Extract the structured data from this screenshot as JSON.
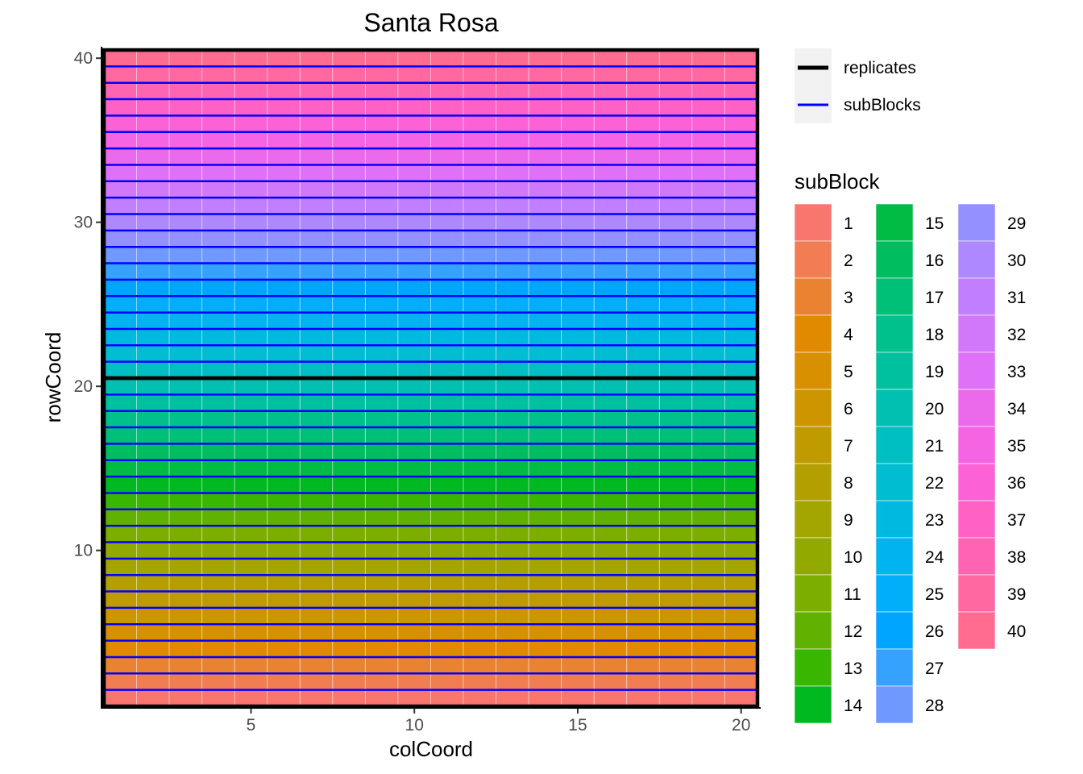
{
  "chart_data": {
    "type": "heatmap",
    "title": "Santa Rosa",
    "xlabel": "colCoord",
    "ylabel": "rowCoord",
    "xlim": [
      0.5,
      20.5
    ],
    "ylim": [
      0.5,
      40.5
    ],
    "x_ticks": [
      "5",
      "10",
      "15",
      "20"
    ],
    "y_ticks": [
      "10",
      "20",
      "30",
      "40"
    ],
    "cols": 20,
    "rows": 40,
    "cell_rule": "subBlock equals rowCoord",
    "fill_legend_title": "subBlock",
    "fill_legend": [
      {
        "label": "1",
        "color": "#F8766D"
      },
      {
        "label": "2",
        "color": "#F27D52"
      },
      {
        "label": "3",
        "color": "#EA8331"
      },
      {
        "label": "4",
        "color": "#E18A00"
      },
      {
        "label": "5",
        "color": "#D89000"
      },
      {
        "label": "6",
        "color": "#CD9600"
      },
      {
        "label": "7",
        "color": "#C09B00"
      },
      {
        "label": "8",
        "color": "#B3A000"
      },
      {
        "label": "9",
        "color": "#A3A500"
      },
      {
        "label": "10",
        "color": "#92AA00"
      },
      {
        "label": "11",
        "color": "#7CAE00"
      },
      {
        "label": "12",
        "color": "#61B200"
      },
      {
        "label": "13",
        "color": "#39B600"
      },
      {
        "label": "14",
        "color": "#00B81F"
      },
      {
        "label": "15",
        "color": "#00BB44"
      },
      {
        "label": "16",
        "color": "#00BD5F"
      },
      {
        "label": "17",
        "color": "#00BF76"
      },
      {
        "label": "18",
        "color": "#00C08B"
      },
      {
        "label": "19",
        "color": "#00C19F"
      },
      {
        "label": "20",
        "color": "#00C0B1"
      },
      {
        "label": "21",
        "color": "#00BFC2"
      },
      {
        "label": "22",
        "color": "#00BDD2"
      },
      {
        "label": "23",
        "color": "#00B9E0"
      },
      {
        "label": "24",
        "color": "#00B4EF"
      },
      {
        "label": "25",
        "color": "#00AEFA"
      },
      {
        "label": "26",
        "color": "#00A5FF"
      },
      {
        "label": "27",
        "color": "#35A2FF"
      },
      {
        "label": "28",
        "color": "#7099FF"
      },
      {
        "label": "29",
        "color": "#9590FF"
      },
      {
        "label": "30",
        "color": "#AD88FF"
      },
      {
        "label": "31",
        "color": "#C17FFF"
      },
      {
        "label": "32",
        "color": "#D078F9"
      },
      {
        "label": "33",
        "color": "#DF70F8"
      },
      {
        "label": "34",
        "color": "#EB6AEC"
      },
      {
        "label": "35",
        "color": "#F564E3"
      },
      {
        "label": "36",
        "color": "#FC61D5"
      },
      {
        "label": "37",
        "color": "#FF62C4"
      },
      {
        "label": "38",
        "color": "#FF64B3"
      },
      {
        "label": "39",
        "color": "#FF68A1"
      },
      {
        "label": "40",
        "color": "#FF6C90"
      }
    ],
    "line_legend": [
      {
        "label": "replicates",
        "color": "#000000"
      },
      {
        "label": "subBlocks",
        "color": "#0000FF"
      }
    ],
    "replicate_boundaries_y": [
      20.5
    ],
    "subblock_boundaries_y": [
      1.5,
      2.5,
      3.5,
      4.5,
      5.5,
      6.5,
      7.5,
      8.5,
      9.5,
      10.5,
      11.5,
      12.5,
      13.5,
      14.5,
      15.5,
      16.5,
      17.5,
      18.5,
      19.5,
      21.5,
      22.5,
      23.5,
      24.5,
      25.5,
      26.5,
      27.5,
      28.5,
      29.5,
      30.5,
      31.5,
      32.5,
      33.5,
      34.5,
      35.5,
      36.5,
      37.5,
      38.5,
      39.5
    ]
  }
}
